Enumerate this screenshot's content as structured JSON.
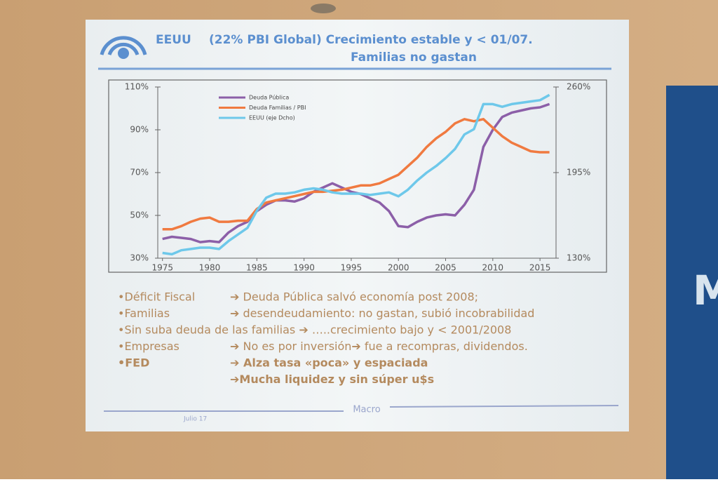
{
  "slide": {
    "title": [
      "EEUU",
      "(22% PBI Global) Crecimiento estable y < 01/07.",
      "Familias no gastan"
    ],
    "bullets": [
      {
        "label": "•Déficit Fiscal",
        "text": "➔ Deuda Pública salvó economía post 2008;"
      },
      {
        "label": "•Familias",
        "text": "➔ desendeudamiento: no gastan, subió incobrabilidad"
      },
      {
        "text": "•Sin suba deuda de las familias ➔ …..crecimiento bajo y < 2001/2008"
      },
      {
        "label": "•Empresas",
        "text": "➔ No es por inversión➔ fue a recompras, dividendos."
      },
      {
        "label": "•FED",
        "text": "➔ Alza tasa «poca» y espaciada",
        "bold": true
      },
      {
        "text": "➔Mucha liquidez y sin súper u$s",
        "bold": true
      }
    ],
    "footer": "Macro",
    "date": "Julio 17",
    "banner": "M"
  },
  "chart_data": {
    "type": "line",
    "x": [
      1975,
      1976,
      1977,
      1978,
      1979,
      1980,
      1981,
      1982,
      1983,
      1984,
      1985,
      1986,
      1987,
      1988,
      1989,
      1990,
      1991,
      1992,
      1993,
      1994,
      1995,
      1996,
      1997,
      1998,
      1999,
      2000,
      2001,
      2002,
      2003,
      2004,
      2005,
      2006,
      2007,
      2008,
      2009,
      2010,
      2011,
      2012,
      2013,
      2014,
      2015,
      2016
    ],
    "xlim": [
      1974.5,
      2016.7
    ],
    "xticks": [
      1975,
      1980,
      1985,
      1990,
      1995,
      2000,
      2005,
      2010,
      2015
    ],
    "ylim": [
      30,
      110
    ],
    "yticks": [
      {
        "value": 30,
        "label": "30%"
      },
      {
        "value": 50,
        "label": "50%"
      },
      {
        "value": 70,
        "label": "70%"
      },
      {
        "value": 90,
        "label": "90%"
      },
      {
        "value": 110,
        "label": "110%"
      }
    ],
    "y2lim": [
      130,
      260
    ],
    "y2ticks": [
      {
        "value": 130,
        "label": "130%"
      },
      {
        "value": 195,
        "label": "195%"
      },
      {
        "value": 260,
        "label": "260%"
      }
    ],
    "series": [
      {
        "name": "Deuda Pública",
        "color": "#8c5fa8",
        "values": [
          39,
          40,
          39.5,
          39,
          37.5,
          38,
          37.5,
          42,
          45,
          47,
          52,
          55,
          57,
          57,
          56.5,
          58,
          61,
          63,
          65,
          63,
          61,
          60,
          58,
          56,
          52,
          45,
          44.5,
          47,
          49,
          50,
          50.5,
          50,
          55,
          62,
          82,
          90,
          96,
          98,
          99,
          100,
          100.5,
          102
        ]
      },
      {
        "name": "Deuda Familias / PBI",
        "color": "#f07a40",
        "values": [
          43.5,
          43.5,
          45,
          47,
          48.5,
          49,
          47,
          47,
          47.5,
          47.5,
          53,
          56,
          57,
          58,
          59,
          60,
          61,
          61,
          61.5,
          62,
          63,
          64,
          64,
          65,
          67,
          69,
          73,
          77,
          82,
          86,
          89,
          93,
          95,
          94,
          95,
          91,
          87,
          84,
          82,
          80,
          79.5,
          79.5
        ]
      },
      {
        "name": "EEUU (eje Dcho)",
        "color": "#6ec8ea",
        "axis": "y2",
        "values": [
          134,
          133,
          136,
          137,
          138,
          138,
          137,
          143,
          148,
          153,
          166,
          176,
          179,
          179,
          180,
          182,
          183,
          182,
          180,
          179,
          179,
          179,
          178,
          179,
          180,
          177,
          182,
          189,
          195,
          200,
          206,
          213,
          224,
          228,
          247,
          247,
          245,
          247,
          248,
          249,
          250,
          254
        ]
      }
    ]
  }
}
